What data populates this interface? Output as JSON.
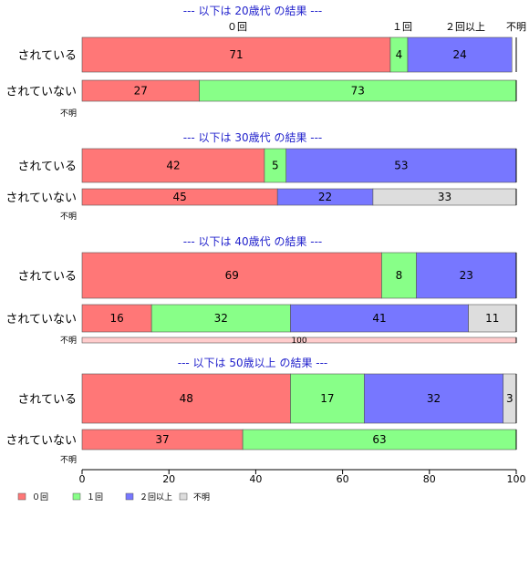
{
  "chart_data": {
    "type": "bar",
    "orientation": "horizontal",
    "stacked": "percent",
    "xlim": [
      0,
      100
    ],
    "xticks": [
      0,
      20,
      40,
      60,
      80,
      100
    ],
    "categories": [
      "０回",
      "１回",
      "２回以上",
      "不明"
    ],
    "colors": [
      "#ff7777",
      "#88ff88",
      "#7777ff",
      "#dddddd"
    ],
    "header_labels": [
      "０回",
      "１回",
      "２回以上",
      "不明"
    ],
    "legend": {
      "placement": "bottom-left",
      "entries": [
        "０回",
        "１回",
        "２回以上",
        "不明"
      ]
    },
    "panels": [
      {
        "title": "--- 以下は 20歳代 の結果 ---",
        "rows": [
          {
            "label": "されている",
            "values": [
              71,
              4,
              24,
              0
            ]
          },
          {
            "label": "されていない",
            "values": [
              27,
              73,
              0,
              0
            ]
          },
          {
            "label": "不明",
            "values": [
              0,
              0,
              0,
              0
            ]
          }
        ]
      },
      {
        "title": "--- 以下は 30歳代 の結果 ---",
        "rows": [
          {
            "label": "されている",
            "values": [
              42,
              5,
              53,
              0
            ]
          },
          {
            "label": "されていない",
            "values": [
              45,
              0,
              22,
              33
            ]
          },
          {
            "label": "不明",
            "values": [
              0,
              0,
              0,
              0
            ]
          }
        ]
      },
      {
        "title": "--- 以下は 40歳代 の結果 ---",
        "rows": [
          {
            "label": "されている",
            "values": [
              69,
              8,
              23,
              0
            ]
          },
          {
            "label": "されていない",
            "values": [
              16,
              32,
              41,
              11
            ]
          },
          {
            "label": "不明",
            "values": [
              100,
              0,
              0,
              0
            ]
          }
        ]
      },
      {
        "title": "--- 以下は 50歳以上 の結果 ---",
        "rows": [
          {
            "label": "されている",
            "values": [
              48,
              17,
              32,
              3
            ]
          },
          {
            "label": "されていない",
            "values": [
              37,
              63,
              0,
              0
            ]
          },
          {
            "label": "不明",
            "values": [
              0,
              0,
              0,
              0
            ]
          }
        ]
      }
    ]
  }
}
